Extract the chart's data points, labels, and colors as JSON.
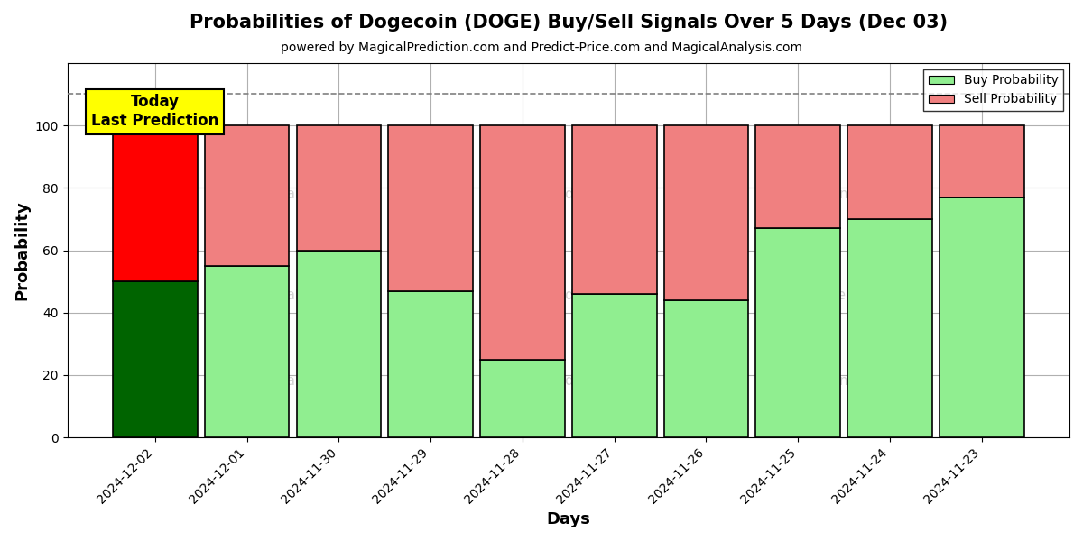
{
  "title": "Probabilities of Dogecoin (DOGE) Buy/Sell Signals Over 5 Days (Dec 03)",
  "subtitle": "powered by MagicalPrediction.com and Predict-Price.com and MagicalAnalysis.com",
  "xlabel": "Days",
  "ylabel": "Probability",
  "categories": [
    "2024-12-02",
    "2024-12-01",
    "2024-11-30",
    "2024-11-29",
    "2024-11-28",
    "2024-11-27",
    "2024-11-26",
    "2024-11-25",
    "2024-11-24",
    "2024-11-23"
  ],
  "buy_values": [
    50,
    55,
    60,
    47,
    25,
    46,
    44,
    67,
    70,
    77
  ],
  "sell_values": [
    50,
    45,
    40,
    53,
    75,
    54,
    56,
    33,
    30,
    23
  ],
  "buy_colors": [
    "#006400",
    "#90EE90",
    "#90EE90",
    "#90EE90",
    "#90EE90",
    "#90EE90",
    "#90EE90",
    "#90EE90",
    "#90EE90",
    "#90EE90"
  ],
  "sell_colors": [
    "#FF0000",
    "#F08080",
    "#F08080",
    "#F08080",
    "#F08080",
    "#F08080",
    "#F08080",
    "#F08080",
    "#F08080",
    "#F08080"
  ],
  "legend_buy_color": "#90EE90",
  "legend_sell_color": "#F08080",
  "today_box_color": "#FFFF00",
  "today_text": "Today\nLast Prediction",
  "dashed_line_y": 110,
  "ylim": [
    0,
    120
  ],
  "yticks": [
    0,
    20,
    40,
    60,
    80,
    100
  ],
  "bar_edgecolor": "#000000",
  "bar_linewidth": 1.2,
  "background_color": "#ffffff",
  "grid_color": "#b0b0b0"
}
